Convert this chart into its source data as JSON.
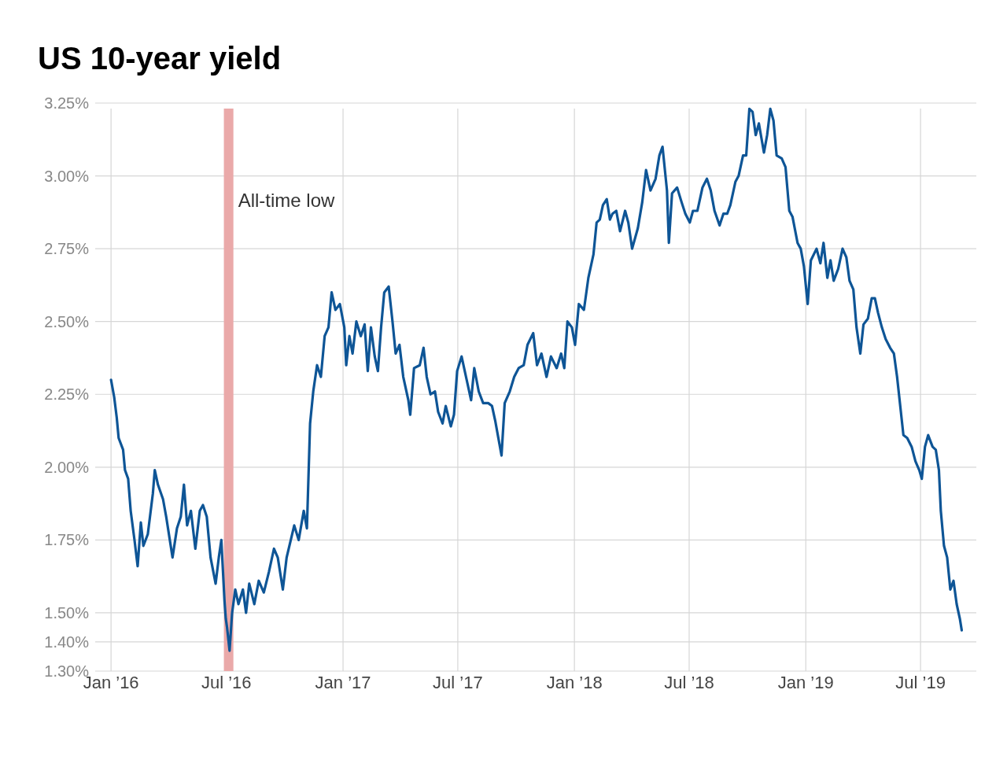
{
  "chart_data": {
    "type": "line",
    "title": "US 10-year yield",
    "xlim": [
      "2015-12-07",
      "2019-09-27"
    ],
    "xticks": [
      {
        "value": "2016-01-01",
        "label": "Jan ’16"
      },
      {
        "value": "2016-07-01",
        "label": "Jul ’16"
      },
      {
        "value": "2017-01-01",
        "label": "Jan ’17"
      },
      {
        "value": "2017-07-01",
        "label": "Jul ’17"
      },
      {
        "value": "2018-01-01",
        "label": "Jan ’18"
      },
      {
        "value": "2018-07-01",
        "label": "Jul ’18"
      },
      {
        "value": "2019-01-01",
        "label": "Jan ’19"
      },
      {
        "value": "2019-07-01",
        "label": "Jul ’19"
      }
    ],
    "ylim": [
      1.3,
      3.25
    ],
    "yticks": [
      {
        "value": 1.3,
        "label": "1.30%"
      },
      {
        "value": 1.4,
        "label": "1.40%"
      },
      {
        "value": 1.5,
        "label": "1.50%"
      },
      {
        "value": 1.75,
        "label": "1.75%"
      },
      {
        "value": 2,
        "label": "2.00%"
      },
      {
        "value": 2.25,
        "label": "2.25%"
      },
      {
        "value": 2.5,
        "label": "2.50%"
      },
      {
        "value": 2.75,
        "label": "2.75%"
      },
      {
        "value": 3,
        "label": "3.00%"
      },
      {
        "value": 3.25,
        "label": "3.25%"
      }
    ],
    "grid": true,
    "bands": [
      {
        "axis": "x",
        "from": "2016-06-27",
        "to": "2016-07-12",
        "label": "All-time low",
        "color": "#eaa9a9"
      }
    ],
    "series": [
      {
        "color": "#0e5596",
        "x": [
          "2016-01-01",
          "2016-01-06",
          "2016-01-10",
          "2016-01-13",
          "2016-01-20",
          "2016-01-23",
          "2016-01-28",
          "2016-02-01",
          "2016-02-07",
          "2016-02-12",
          "2016-02-17",
          "2016-02-21",
          "2016-02-28",
          "2016-03-07",
          "2016-03-10",
          "2016-03-15",
          "2016-03-23",
          "2016-03-28",
          "2016-04-07",
          "2016-04-14",
          "2016-04-20",
          "2016-04-25",
          "2016-04-30",
          "2016-05-06",
          "2016-05-13",
          "2016-05-20",
          "2016-05-25",
          "2016-05-31",
          "2016-06-06",
          "2016-06-14",
          "2016-06-19",
          "2016-06-23",
          "2016-06-28",
          "2016-06-30",
          "2016-07-02",
          "2016-07-06",
          "2016-07-10",
          "2016-07-15",
          "2016-07-20",
          "2016-07-27",
          "2016-08-01",
          "2016-08-06",
          "2016-08-14",
          "2016-08-21",
          "2016-08-29",
          "2016-09-06",
          "2016-09-14",
          "2016-09-20",
          "2016-09-28",
          "2016-10-04",
          "2016-10-16",
          "2016-10-23",
          "2016-10-31",
          "2016-11-05",
          "2016-11-10",
          "2016-11-15",
          "2016-11-21",
          "2016-11-27",
          "2016-12-03",
          "2016-12-09",
          "2016-12-14",
          "2016-12-20",
          "2016-12-27",
          "2017-01-03",
          "2017-01-06",
          "2017-01-11",
          "2017-01-16",
          "2017-01-22",
          "2017-01-29",
          "2017-02-04",
          "2017-02-09",
          "2017-02-14",
          "2017-02-20",
          "2017-02-25",
          "2017-03-02",
          "2017-03-07",
          "2017-03-14",
          "2017-03-20",
          "2017-03-25",
          "2017-03-31",
          "2017-04-06",
          "2017-04-14",
          "2017-04-17",
          "2017-04-23",
          "2017-05-02",
          "2017-05-08",
          "2017-05-13",
          "2017-05-19",
          "2017-05-26",
          "2017-05-31",
          "2017-06-07",
          "2017-06-12",
          "2017-06-20",
          "2017-06-25",
          "2017-06-30",
          "2017-07-07",
          "2017-07-15",
          "2017-07-22",
          "2017-07-27",
          "2017-08-03",
          "2017-08-10",
          "2017-08-18",
          "2017-08-24",
          "2017-08-29",
          "2017-09-03",
          "2017-09-08",
          "2017-09-13",
          "2017-09-21",
          "2017-09-28",
          "2017-10-05",
          "2017-10-13",
          "2017-10-19",
          "2017-10-28",
          "2017-11-03",
          "2017-11-10",
          "2017-11-18",
          "2017-11-25",
          "2017-12-04",
          "2017-12-11",
          "2017-12-16",
          "2017-12-21",
          "2017-12-28",
          "2018-01-02",
          "2018-01-08",
          "2018-01-16",
          "2018-01-23",
          "2018-01-31",
          "2018-02-05",
          "2018-02-10",
          "2018-02-15",
          "2018-02-21",
          "2018-02-26",
          "2018-03-02",
          "2018-03-08",
          "2018-03-14",
          "2018-03-22",
          "2018-03-27",
          "2018-04-02",
          "2018-04-11",
          "2018-04-18",
          "2018-04-24",
          "2018-05-01",
          "2018-05-09",
          "2018-05-15",
          "2018-05-20",
          "2018-05-27",
          "2018-05-30",
          "2018-06-04",
          "2018-06-12",
          "2018-06-19",
          "2018-06-25",
          "2018-07-02",
          "2018-07-07",
          "2018-07-14",
          "2018-07-22",
          "2018-07-29",
          "2018-08-04",
          "2018-08-10",
          "2018-08-18",
          "2018-08-24",
          "2018-08-30",
          "2018-09-04",
          "2018-09-12",
          "2018-09-17",
          "2018-09-24",
          "2018-09-29",
          "2018-10-04",
          "2018-10-09",
          "2018-10-14",
          "2018-10-19",
          "2018-10-27",
          "2018-11-01",
          "2018-11-06",
          "2018-11-11",
          "2018-11-16",
          "2018-11-24",
          "2018-11-30",
          "2018-12-06",
          "2018-12-11",
          "2018-12-19",
          "2018-12-24",
          "2018-12-29",
          "2019-01-04",
          "2019-01-09",
          "2019-01-18",
          "2019-01-24",
          "2019-01-29",
          "2019-02-04",
          "2019-02-09",
          "2019-02-14",
          "2019-02-21",
          "2019-02-28",
          "2019-03-06",
          "2019-03-11",
          "2019-03-17",
          "2019-03-22",
          "2019-03-28",
          "2019-04-02",
          "2019-04-09",
          "2019-04-15",
          "2019-04-20",
          "2019-04-25",
          "2019-05-01",
          "2019-05-07",
          "2019-05-14",
          "2019-05-20",
          "2019-05-25",
          "2019-05-30",
          "2019-06-04",
          "2019-06-10",
          "2019-06-17",
          "2019-06-23",
          "2019-06-29",
          "2019-07-03",
          "2019-07-08",
          "2019-07-13",
          "2019-07-20",
          "2019-07-25",
          "2019-07-30",
          "2019-08-02",
          "2019-08-07",
          "2019-08-12",
          "2019-08-17",
          "2019-08-22",
          "2019-08-27",
          "2019-09-01",
          "2019-09-04"
        ],
        "values": [
          2.3,
          2.24,
          2.17,
          2.1,
          2.06,
          1.99,
          1.96,
          1.85,
          1.75,
          1.66,
          1.81,
          1.73,
          1.77,
          1.91,
          1.99,
          1.94,
          1.89,
          1.83,
          1.69,
          1.79,
          1.83,
          1.94,
          1.8,
          1.85,
          1.72,
          1.85,
          1.87,
          1.83,
          1.69,
          1.6,
          1.69,
          1.75,
          1.54,
          1.48,
          1.45,
          1.37,
          1.5,
          1.58,
          1.53,
          1.58,
          1.5,
          1.6,
          1.53,
          1.61,
          1.57,
          1.64,
          1.72,
          1.69,
          1.58,
          1.69,
          1.8,
          1.75,
          1.85,
          1.79,
          2.15,
          2.26,
          2.35,
          2.31,
          2.45,
          2.48,
          2.6,
          2.54,
          2.56,
          2.48,
          2.35,
          2.45,
          2.39,
          2.5,
          2.45,
          2.49,
          2.33,
          2.48,
          2.38,
          2.33,
          2.48,
          2.6,
          2.62,
          2.5,
          2.39,
          2.42,
          2.31,
          2.23,
          2.18,
          2.34,
          2.35,
          2.41,
          2.31,
          2.25,
          2.26,
          2.19,
          2.15,
          2.21,
          2.14,
          2.18,
          2.33,
          2.38,
          2.3,
          2.23,
          2.34,
          2.26,
          2.22,
          2.22,
          2.21,
          2.16,
          2.1,
          2.04,
          2.22,
          2.26,
          2.31,
          2.34,
          2.35,
          2.42,
          2.46,
          2.35,
          2.39,
          2.31,
          2.38,
          2.34,
          2.39,
          2.34,
          2.5,
          2.48,
          2.42,
          2.56,
          2.54,
          2.65,
          2.73,
          2.84,
          2.85,
          2.9,
          2.92,
          2.85,
          2.87,
          2.88,
          2.81,
          2.88,
          2.84,
          2.75,
          2.82,
          2.91,
          3.02,
          2.95,
          2.99,
          3.07,
          3.1,
          2.95,
          2.77,
          2.94,
          2.96,
          2.91,
          2.87,
          2.84,
          2.88,
          2.88,
          2.96,
          2.99,
          2.95,
          2.88,
          2.83,
          2.87,
          2.87,
          2.9,
          2.98,
          3.0,
          3.07,
          3.07,
          3.23,
          3.22,
          3.14,
          3.18,
          3.08,
          3.14,
          3.23,
          3.19,
          3.07,
          3.06,
          3.03,
          2.88,
          2.86,
          2.77,
          2.75,
          2.69,
          2.56,
          2.71,
          2.75,
          2.7,
          2.77,
          2.65,
          2.71,
          2.64,
          2.68,
          2.75,
          2.72,
          2.64,
          2.61,
          2.48,
          2.39,
          2.49,
          2.51,
          2.58,
          2.58,
          2.53,
          2.48,
          2.44,
          2.41,
          2.39,
          2.31,
          2.21,
          2.11,
          2.1,
          2.07,
          2.02,
          1.99,
          1.96,
          2.07,
          2.11,
          2.07,
          2.06,
          1.99,
          1.85,
          1.73,
          1.69,
          1.58,
          1.61,
          1.53,
          1.48,
          1.44
        ]
      }
    ]
  }
}
